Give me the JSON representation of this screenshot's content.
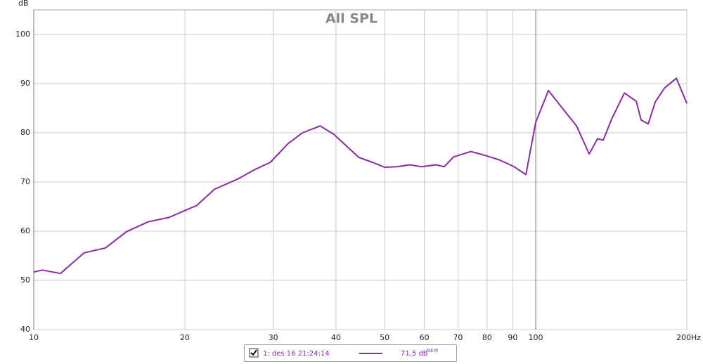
{
  "chart_data": {
    "type": "line",
    "title": "All SPL",
    "y_label": "dB",
    "x": [
      10,
      10.4,
      11.3,
      12.6,
      13.9,
      15.3,
      16.9,
      18.6,
      20,
      21.1,
      22.9,
      25.6,
      27.4,
      29.6,
      32.1,
      34.3,
      37.2,
      39.6,
      44.4,
      47.3,
      50,
      53,
      56.1,
      59.3,
      63.3,
      65.7,
      68.6,
      74.3,
      79.3,
      84.6,
      90.2,
      95.6,
      100,
      106,
      113,
      120.6,
      127.8,
      132.8,
      136.3,
      141.7,
      150.2,
      158.6,
      162.2,
      167.5,
      173.1,
      180.5,
      190.6,
      200
    ],
    "series": [
      {
        "name": "1: des 16 21:24:14",
        "color": "#8a2ba6",
        "values": [
          51.7,
          52.1,
          51.4,
          55.6,
          56.6,
          59.9,
          61.9,
          62.8,
          64.2,
          65.2,
          68.5,
          70.7,
          72.4,
          74.0,
          77.8,
          80.0,
          81.4,
          79.7,
          75.0,
          74.0,
          73.0,
          73.1,
          73.5,
          73.1,
          73.5,
          73.1,
          75.1,
          76.2,
          75.4,
          74.5,
          73.2,
          71.5,
          82.1,
          88.6,
          85.0,
          81.4,
          75.7,
          78.8,
          78.5,
          82.8,
          88.1,
          86.4,
          82.6,
          81.8,
          86.3,
          89.1,
          91.1,
          86.0
        ]
      }
    ],
    "legend_value": "71,5 dB",
    "legend_tag": "NEW",
    "xlog": true,
    "grid": true,
    "xlim": [
      10,
      200
    ],
    "xticks": [
      10,
      20,
      30,
      40,
      50,
      60,
      70,
      80,
      90,
      100,
      {
        "value": 200,
        "label": "200Hz"
      }
    ],
    "ylim": [
      40,
      105
    ],
    "yticks": [
      40,
      50,
      60,
      70,
      80,
      90,
      100
    ]
  }
}
